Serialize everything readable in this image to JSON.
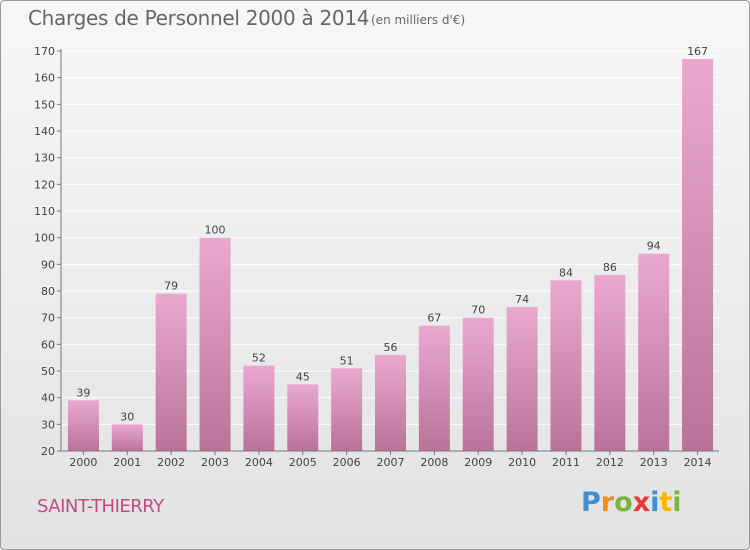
{
  "header": {
    "title": "Charges de Personnel 2000 à 2014",
    "subtitle": "(en milliers d'€)"
  },
  "footer": {
    "place": "SAINT-THIERRY",
    "brand": "Proxiti",
    "brand_letters": [
      {
        "ch": "P",
        "color": "#3d8fd6"
      },
      {
        "ch": "r",
        "color": "#f28c1e"
      },
      {
        "ch": "o",
        "color": "#7cb342"
      },
      {
        "ch": "x",
        "color": "#e53935"
      },
      {
        "ch": "i",
        "color": "#3d8fd6"
      },
      {
        "ch": "t",
        "color": "#f5b800"
      },
      {
        "ch": "i",
        "color": "#7cb342"
      }
    ]
  },
  "colors": {
    "bar_top": "#eaa8d0",
    "bar_bottom": "#b9739b",
    "axis": "#777777",
    "grid": "#ffffff",
    "text": "#444444"
  },
  "chart_data": {
    "type": "bar",
    "categories": [
      "2000",
      "2001",
      "2002",
      "2003",
      "2004",
      "2005",
      "2006",
      "2007",
      "2008",
      "2009",
      "2010",
      "2011",
      "2012",
      "2013",
      "2014"
    ],
    "values": [
      39,
      30,
      79,
      100,
      52,
      45,
      51,
      56,
      67,
      70,
      74,
      84,
      86,
      94,
      167
    ],
    "title": "Charges de Personnel 2000 à 2014",
    "subtitle": "(en milliers d'€)",
    "ylim": [
      20,
      170
    ],
    "yticks": [
      20,
      30,
      40,
      50,
      60,
      70,
      80,
      90,
      100,
      110,
      120,
      130,
      140,
      150,
      160,
      170
    ],
    "grid": "horizontal",
    "data_labels": true
  }
}
